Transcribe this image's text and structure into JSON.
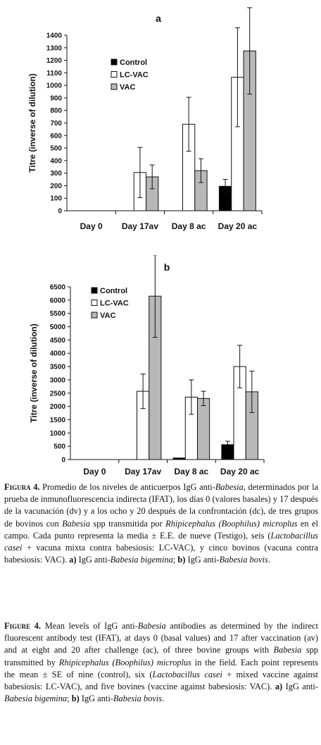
{
  "charts": [
    {
      "panel": "a",
      "ylabel": "Titre (inverse of dilution)",
      "yticks": [
        "0",
        "100",
        "200",
        "300",
        "400",
        "500",
        "600",
        "700",
        "800",
        "900",
        "1000",
        "1100",
        "1200",
        "1300",
        "1400"
      ],
      "categories": [
        "Day 0",
        "Day 17av",
        "Day 8 ac",
        "Day 20 ac"
      ],
      "legend": [
        "Control",
        "LC-VAC",
        "VAC"
      ]
    },
    {
      "panel": "b",
      "ylabel": "Titre (inverse of dilution)",
      "yticks": [
        "0",
        "500",
        "1000",
        "1500",
        "2000",
        "2500",
        "3000",
        "3500",
        "4000",
        "4500",
        "5000",
        "5500",
        "6000",
        "6500"
      ],
      "categories": [
        "Day 0",
        "Day 17av",
        "Day 8 ac",
        "Day 20 ac"
      ],
      "legend": [
        "Control",
        "LC-VAC",
        "VAC"
      ]
    }
  ],
  "chart_data": [
    {
      "type": "bar",
      "title": "a",
      "ylabel": "Titre (inverse of dilution)",
      "categories": [
        "Day 0",
        "Day 17av",
        "Day 8 ac",
        "Day 20 ac"
      ],
      "ylim": [
        0,
        1400
      ],
      "legend_position": "left",
      "series": [
        {
          "name": "Control",
          "color": "#000000",
          "values": [
            0,
            0,
            0,
            195
          ],
          "errors": [
            0,
            0,
            0,
            55
          ]
        },
        {
          "name": "LC-VAC",
          "color": "#ffffff",
          "values": [
            0,
            305,
            690,
            1065
          ],
          "errors": [
            0,
            200,
            215,
            395
          ]
        },
        {
          "name": "VAC",
          "color": "#b8b8b8",
          "values": [
            0,
            270,
            320,
            1275
          ],
          "errors": [
            0,
            95,
            95,
            345
          ]
        }
      ]
    },
    {
      "type": "bar",
      "title": "b",
      "ylabel": "Titre (inverse of dilution)",
      "categories": [
        "Day 0",
        "Day 17av",
        "Day 8 ac",
        "Day 20 ac"
      ],
      "ylim": [
        0,
        6500
      ],
      "legend_position": "left",
      "series": [
        {
          "name": "Control",
          "color": "#000000",
          "values": [
            0,
            0,
            60,
            560
          ],
          "errors": [
            0,
            0,
            0,
            130
          ]
        },
        {
          "name": "LC-VAC",
          "color": "#ffffff",
          "values": [
            0,
            2570,
            2350,
            3500
          ],
          "errors": [
            0,
            650,
            650,
            800
          ]
        },
        {
          "name": "VAC",
          "color": "#b8b8b8",
          "values": [
            0,
            6150,
            2300,
            2550
          ],
          "errors": [
            0,
            1550,
            270,
            780
          ]
        }
      ]
    }
  ],
  "captions": {
    "es": {
      "lead": "Figura",
      "num": "4.",
      "parts": [
        {
          "t": " Promedio de los niveles de anticuerpos IgG anti-",
          "i": false
        },
        {
          "t": "Babesia",
          "i": true
        },
        {
          "t": ", determinados por la prueba de inmunofluorescencia indirecta (IFAT), los días 0 (valores basales) y 17 después de la vacunación (dv) y a los ocho y 20 después de la confrontación (dc), de tres grupos de bovinos con ",
          "i": false
        },
        {
          "t": "Babesia",
          "i": true
        },
        {
          "t": " spp transmitida por ",
          "i": false
        },
        {
          "t": "Rhipicephalus (Boophilus) microplus",
          "i": true
        },
        {
          "t": " en el campo. Cada punto representa la media ± E.E. de nueve (Testigo), seis (",
          "i": false
        },
        {
          "t": "Lactobacillus casei",
          "i": true
        },
        {
          "t": " + vacuna mixta contra babesiosis: LC-VAC), y cinco bovinos (vacuna contra babesiosis: VAC). ",
          "i": false
        },
        {
          "t": "a)",
          "i": false,
          "b": true
        },
        {
          "t": " IgG anti-",
          "i": false
        },
        {
          "t": "Babesia bigemina",
          "i": true
        },
        {
          "t": "; ",
          "i": false
        },
        {
          "t": "b)",
          "i": false,
          "b": true
        },
        {
          "t": " IgG anti-",
          "i": false
        },
        {
          "t": "Babesia bovis",
          "i": true
        },
        {
          "t": ".",
          "i": false
        }
      ]
    },
    "en": {
      "lead": "Figure",
      "num": "4.",
      "parts": [
        {
          "t": " Mean levels of IgG anti-",
          "i": false
        },
        {
          "t": "Babesia",
          "i": true
        },
        {
          "t": " antibodies as determined by the indirect fluorescent antibody test (IFAT), at days 0 (basal values) and 17 after vaccination (av) and at eight and 20 after challenge (ac), of three bovine groups with ",
          "i": false
        },
        {
          "t": "Babesia",
          "i": true
        },
        {
          "t": " spp transmitted by ",
          "i": false
        },
        {
          "t": "Rhipicephalus (Boophilus) microplus",
          "i": true
        },
        {
          "t": " in the field. Each point represents the mean ± SE of nine (control), six (",
          "i": false
        },
        {
          "t": "Lactobacillus casei",
          "i": true
        },
        {
          "t": " + mixed vaccine against babesiosis: LC-VAC), and five bovines (vaccine against babesiosis: VAC). ",
          "i": false
        },
        {
          "t": "a)",
          "i": false,
          "b": true
        },
        {
          "t": " IgG anti-",
          "i": false
        },
        {
          "t": "Babesia bigemina",
          "i": true
        },
        {
          "t": "; ",
          "i": false
        },
        {
          "t": "b)",
          "i": false,
          "b": true
        },
        {
          "t": " IgG anti-",
          "i": false
        },
        {
          "t": "Babesia bovis",
          "i": true
        },
        {
          "t": ".",
          "i": false
        }
      ]
    }
  }
}
